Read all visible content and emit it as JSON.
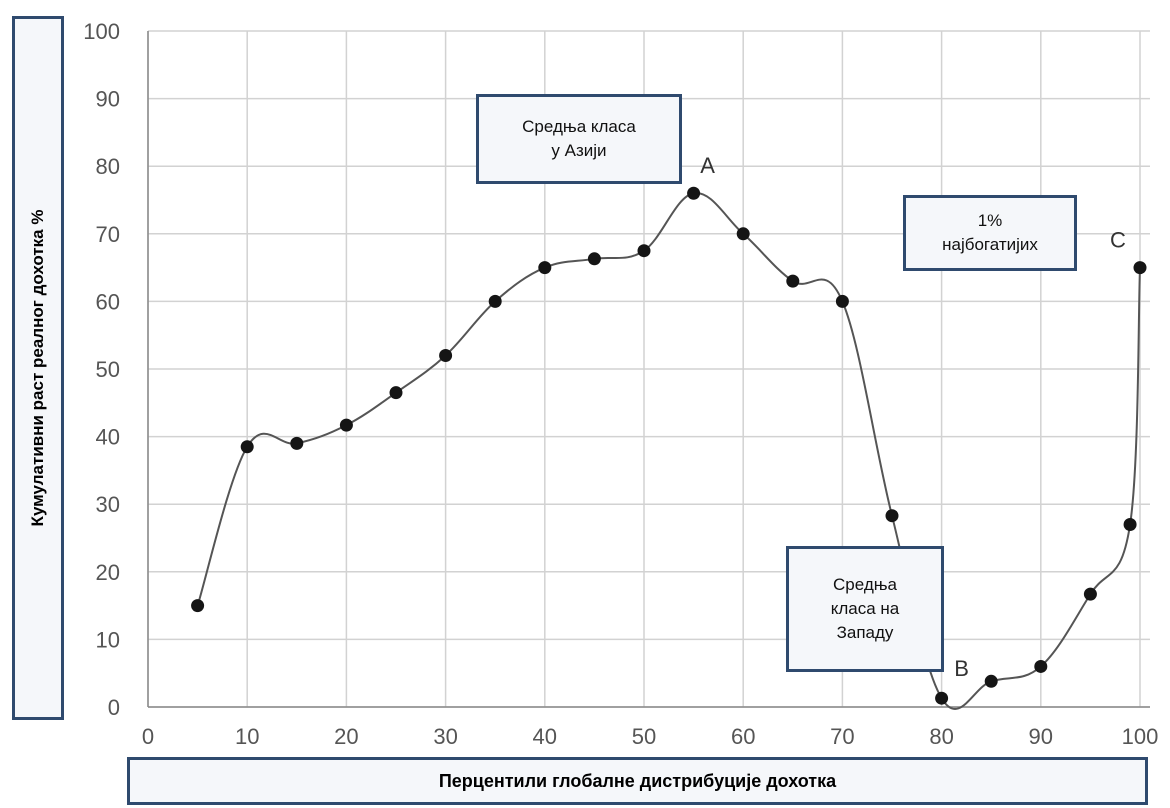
{
  "chart_data": {
    "type": "line",
    "title": "",
    "xlabel": "Перцентили глобалне дистрибуције дохотка",
    "ylabel": "Кумулативни раст реалног дохотка %",
    "xlim": [
      0,
      100
    ],
    "ylim": [
      0,
      100
    ],
    "x_ticks": [
      "0",
      "10",
      "20",
      "30",
      "40",
      "50",
      "60",
      "70",
      "80",
      "90",
      "100"
    ],
    "y_ticks": [
      "0",
      "10",
      "20",
      "30",
      "40",
      "50",
      "60",
      "70",
      "80",
      "90",
      "100"
    ],
    "grid": true,
    "series": [
      {
        "x": [
          5,
          10,
          15,
          20,
          25,
          30,
          35,
          40,
          45,
          50,
          55,
          60,
          65,
          70,
          75,
          80,
          85,
          90,
          95,
          99,
          100
        ],
        "y": [
          15,
          38.5,
          39,
          41.7,
          46.5,
          52,
          60,
          65,
          66.3,
          67.5,
          76,
          70,
          63,
          60,
          28.3,
          1.3,
          3.8,
          6,
          16.7,
          27,
          65
        ]
      }
    ],
    "point_labels": [
      {
        "label": "A",
        "x": 55,
        "y": 76
      },
      {
        "label": "B",
        "x": 80,
        "y": 1.3
      },
      {
        "label": "C",
        "x": 100,
        "y": 65
      }
    ],
    "annotations": {
      "asia": "Средња класа\nу Азији",
      "west": "Средња\nкласа на\nЗападу",
      "top1": "1%\nнајбогатијих"
    }
  }
}
